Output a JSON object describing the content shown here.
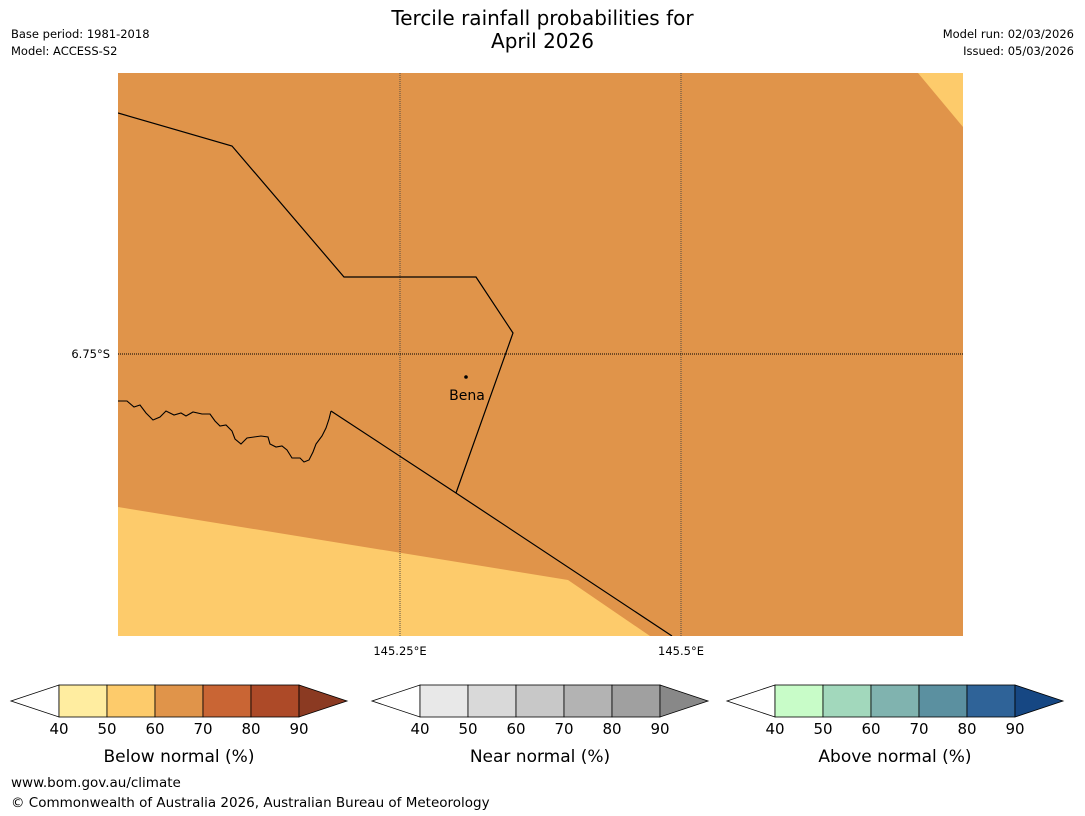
{
  "header": {
    "title_line1": "Tercile rainfall probabilities for",
    "title_line2": "April 2026",
    "base_period": "Base period: 1981-2018",
    "model": "Model: ACCESS-S2",
    "model_run": "Model run: 02/03/2026",
    "issued": "Issued: 05/03/2026"
  },
  "map": {
    "place_label": "Bena",
    "lat_label": "6.75°S",
    "lon_labels": [
      "145.25°E",
      "145.5°E"
    ],
    "colors": {
      "below_60_70": "#e0944a",
      "below_50_60": "#fdcb6b",
      "border": "#000000"
    }
  },
  "legends": [
    {
      "label": "Below normal (%)",
      "ticks": [
        "40",
        "50",
        "60",
        "70",
        "80",
        "90"
      ],
      "colors": [
        "#ffffff",
        "#ffeda0",
        "#fdcb6b",
        "#e0944a",
        "#c96534",
        "#ad4a28",
        "#8b3a22"
      ]
    },
    {
      "label": "Near normal (%)",
      "ticks": [
        "40",
        "50",
        "60",
        "70",
        "80",
        "90"
      ],
      "colors": [
        "#ffffff",
        "#e8e8e8",
        "#d9d9d9",
        "#c8c8c8",
        "#b3b3b3",
        "#a0a0a0",
        "#888888"
      ]
    },
    {
      "label": "Above normal (%)",
      "ticks": [
        "40",
        "50",
        "60",
        "70",
        "80",
        "90"
      ],
      "colors": [
        "#ffffff",
        "#c8fcc8",
        "#a2d8bc",
        "#80b3af",
        "#5b90a0",
        "#2f6398",
        "#164783"
      ]
    }
  ],
  "footer": {
    "url": "www.bom.gov.au/climate",
    "copyright": "© Commonwealth of Australia 2026, Australian Bureau of Meteorology"
  }
}
